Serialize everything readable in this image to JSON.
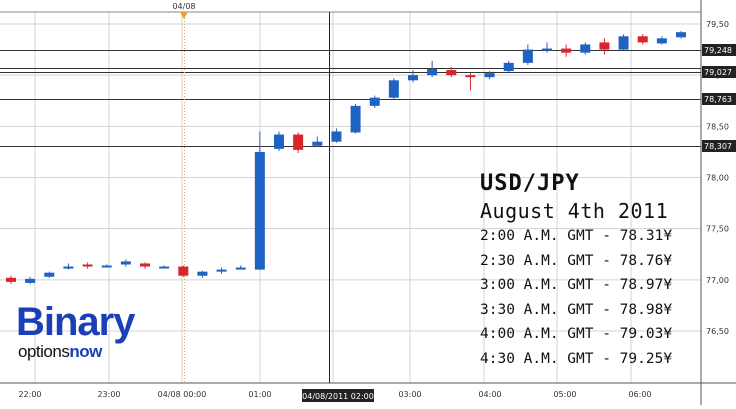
{
  "chart_data": {
    "type": "candlestick",
    "title": "USD/JPY",
    "subtitle": "August 4th 2011",
    "top_date_label": "04/08",
    "crosshair_time_label": "04/08/2011 02:00",
    "y_ticks": [
      "79,50",
      "79,00",
      "78,50",
      "78,00",
      "77,50",
      "77,00",
      "76,50"
    ],
    "y_tick_values": [
      79.5,
      79.0,
      78.5,
      78.0,
      77.5,
      77.0,
      76.5
    ],
    "ylim": [
      76.0,
      79.8
    ],
    "x_ticks": [
      "22:00",
      "23:00",
      "04/08 00:00",
      "01:00",
      "03:00",
      "04:00",
      "05:00",
      "06:00"
    ],
    "levels": [
      {
        "label": "79,248",
        "value": 79.248
      },
      {
        "label": "79,027",
        "value": 79.027
      },
      {
        "label": "78,763",
        "value": 78.763
      },
      {
        "label": "78,307",
        "value": 78.307
      }
    ],
    "candles": [
      {
        "open": 76.98,
        "close": 77.02,
        "high": 77.04,
        "low": 76.96,
        "dir": "down"
      },
      {
        "open": 76.97,
        "close": 77.01,
        "high": 77.03,
        "low": 76.96,
        "dir": "up"
      },
      {
        "open": 77.03,
        "close": 77.07,
        "high": 77.08,
        "low": 77.02,
        "dir": "up"
      },
      {
        "open": 77.11,
        "close": 77.13,
        "high": 77.16,
        "low": 77.1,
        "dir": "up"
      },
      {
        "open": 77.15,
        "close": 77.13,
        "high": 77.17,
        "low": 77.11,
        "dir": "down"
      },
      {
        "open": 77.13,
        "close": 77.14,
        "high": 77.15,
        "low": 77.12,
        "dir": "up"
      },
      {
        "open": 77.15,
        "close": 77.18,
        "high": 77.2,
        "low": 77.13,
        "dir": "up"
      },
      {
        "open": 77.16,
        "close": 77.13,
        "high": 77.17,
        "low": 77.11,
        "dir": "down"
      },
      {
        "open": 77.12,
        "close": 77.13,
        "high": 77.14,
        "low": 77.11,
        "dir": "up"
      },
      {
        "open": 77.13,
        "close": 77.04,
        "high": 77.14,
        "low": 77.03,
        "dir": "down"
      },
      {
        "open": 77.04,
        "close": 77.08,
        "high": 77.09,
        "low": 77.02,
        "dir": "up"
      },
      {
        "open": 77.08,
        "close": 77.1,
        "high": 77.12,
        "low": 77.06,
        "dir": "up"
      },
      {
        "open": 77.11,
        "close": 77.12,
        "high": 77.14,
        "low": 77.1,
        "dir": "up"
      },
      {
        "open": 77.1,
        "close": 78.25,
        "high": 78.45,
        "low": 77.1,
        "dir": "up"
      },
      {
        "open": 78.28,
        "close": 78.42,
        "high": 78.45,
        "low": 78.26,
        "dir": "up"
      },
      {
        "open": 78.42,
        "close": 78.27,
        "high": 78.44,
        "low": 78.24,
        "dir": "down"
      },
      {
        "open": 78.31,
        "close": 78.35,
        "high": 78.4,
        "low": 78.3,
        "dir": "up"
      },
      {
        "open": 78.35,
        "close": 78.45,
        "high": 78.48,
        "low": 78.34,
        "dir": "up"
      },
      {
        "open": 78.44,
        "close": 78.7,
        "high": 78.72,
        "low": 78.43,
        "dir": "up"
      },
      {
        "open": 78.7,
        "close": 78.78,
        "high": 78.8,
        "low": 78.68,
        "dir": "up"
      },
      {
        "open": 78.78,
        "close": 78.95,
        "high": 78.97,
        "low": 78.76,
        "dir": "up"
      },
      {
        "open": 78.95,
        "close": 79.0,
        "high": 79.05,
        "low": 78.93,
        "dir": "up"
      },
      {
        "open": 79.0,
        "close": 79.06,
        "high": 79.14,
        "low": 78.98,
        "dir": "up"
      },
      {
        "open": 79.05,
        "close": 79.0,
        "high": 79.08,
        "low": 78.98,
        "dir": "down"
      },
      {
        "open": 79.0,
        "close": 78.98,
        "high": 79.02,
        "low": 78.85,
        "dir": "down"
      },
      {
        "open": 78.98,
        "close": 79.02,
        "high": 79.04,
        "low": 78.96,
        "dir": "up"
      },
      {
        "open": 79.04,
        "close": 79.12,
        "high": 79.14,
        "low": 79.03,
        "dir": "up"
      },
      {
        "open": 79.12,
        "close": 79.25,
        "high": 79.3,
        "low": 79.1,
        "dir": "up"
      },
      {
        "open": 79.24,
        "close": 79.26,
        "high": 79.32,
        "low": 79.22,
        "dir": "up"
      },
      {
        "open": 79.26,
        "close": 79.22,
        "high": 79.3,
        "low": 79.18,
        "dir": "down"
      },
      {
        "open": 79.22,
        "close": 79.3,
        "high": 79.32,
        "low": 79.2,
        "dir": "up"
      },
      {
        "open": 79.32,
        "close": 79.25,
        "high": 79.36,
        "low": 79.2,
        "dir": "down"
      },
      {
        "open": 79.25,
        "close": 79.38,
        "high": 79.4,
        "low": 79.24,
        "dir": "up"
      },
      {
        "open": 79.38,
        "close": 79.32,
        "high": 79.4,
        "low": 79.3,
        "dir": "down"
      },
      {
        "open": 79.31,
        "close": 79.36,
        "high": 79.38,
        "low": 79.3,
        "dir": "up"
      },
      {
        "open": 79.37,
        "close": 79.42,
        "high": 79.43,
        "low": 79.36,
        "dir": "up"
      }
    ],
    "colors": {
      "up": "#1f63c2",
      "down": "#d9262c",
      "grid": "#d3d3d3",
      "level_line": "#333333",
      "label_bg": "#222222",
      "marker": "#e8a23a"
    },
    "grid": true
  },
  "overlay": {
    "pair": "USD/JPY",
    "date": "August 4th 2011",
    "rows": [
      "2:00 A.M. GMT - 78.31¥",
      "2:30 A.M. GMT - 78.76¥",
      "3:00 A.M. GMT - 78.97¥",
      "3:30 A.M. GMT - 78.98¥",
      "4:00 A.M. GMT - 79.03¥",
      "4:30 A.M. GMT - 79.25¥"
    ]
  },
  "logo": {
    "brand": "Binary",
    "line2_a": "options",
    "line2_b": "now"
  }
}
